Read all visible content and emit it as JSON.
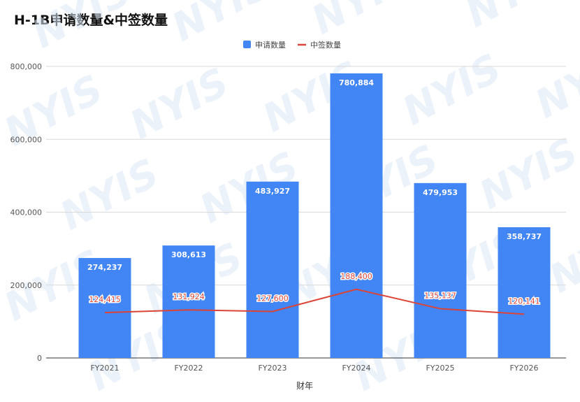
{
  "chart_data": {
    "type": "bar",
    "title": "H-1B申请数量&中签数量",
    "xlabel": "财年",
    "ylabel": "",
    "categories": [
      "FY2021",
      "FY2022",
      "FY2023",
      "FY2024",
      "FY2025",
      "FY2026"
    ],
    "ylim": [
      0,
      800000
    ],
    "yticks": [
      0,
      200000,
      400000,
      600000,
      800000
    ],
    "ytick_labels": [
      "0",
      "200,000",
      "400,000",
      "600,000",
      "800,000"
    ],
    "grid": true,
    "legend_position": "top-center",
    "series": [
      {
        "name": "申请数量",
        "kind": "bar",
        "color": "#4285f4",
        "values": [
          274237,
          308613,
          483927,
          780884,
          479953,
          358737
        ],
        "labels": [
          "274,237",
          "308,613",
          "483,927",
          "780,884",
          "479,953",
          "358,737"
        ]
      },
      {
        "name": "中签数量",
        "kind": "line",
        "color": "#db4437",
        "values": [
          124415,
          131924,
          127600,
          188400,
          135137,
          120141
        ],
        "labels": [
          "124,415",
          "131,924",
          "127,600",
          "188,400",
          "135,137",
          "120,141"
        ]
      }
    ]
  },
  "watermark": {
    "text": "NYIS",
    "color": "#dbe7f5"
  }
}
